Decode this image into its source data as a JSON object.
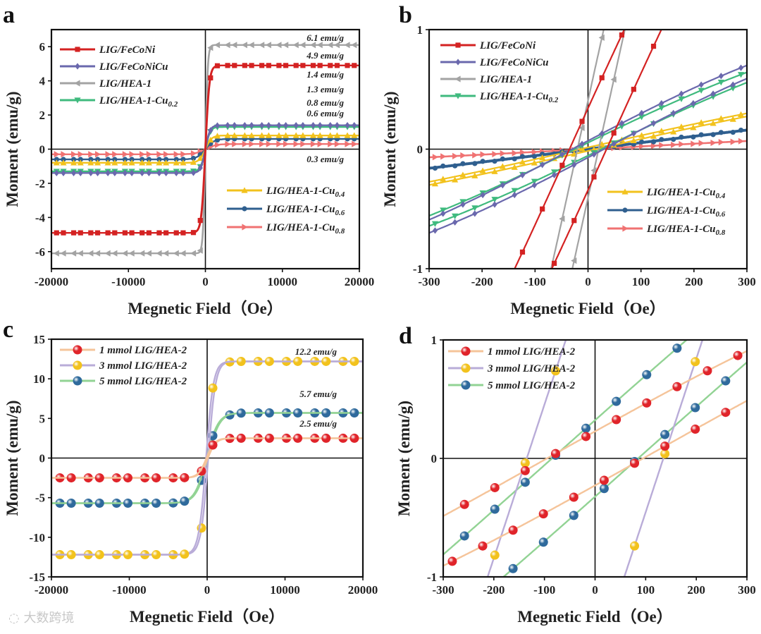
{
  "chart_data": [
    {
      "id": "a",
      "type": "line",
      "panel_label": "a",
      "xlabel": "Megnetic Field（Oe）",
      "ylabel": "Moment (emu/g)",
      "xlim": [
        -20000,
        20000
      ],
      "ylim": [
        -7,
        7
      ],
      "xticks": [
        -20000,
        -10000,
        0,
        10000,
        20000
      ],
      "yticks": [
        -6,
        -4,
        -2,
        0,
        2,
        4,
        6
      ],
      "series": [
        {
          "name": "LIG/FeCoNi",
          "sub": "",
          "color": "#d42222",
          "marker": "square",
          "ms": 4.9,
          "hc": 35,
          "w": 500
        },
        {
          "name": "LIG/FeCoNiCu",
          "sub": "",
          "color": "#6a68ad",
          "marker": "diamond",
          "ms": 1.4,
          "hc": 30,
          "w": 600
        },
        {
          "name": "LIG/HEA-1",
          "sub": "",
          "color": "#a3a3a3",
          "marker": "triangle-left",
          "ms": 6.1,
          "hc": 20,
          "w": 300
        },
        {
          "name": "LIG/HEA-1-Cu",
          "sub": "0.2",
          "color": "#3fba7e",
          "marker": "triangle-down",
          "ms": 1.3,
          "hc": 25,
          "w": 600
        },
        {
          "name": "LIG/HEA-1-Cu",
          "sub": "0.4",
          "color": "#f2c21d",
          "marker": "triangle-up",
          "ms": 0.8,
          "hc": 15,
          "w": 800
        },
        {
          "name": "LIG/HEA-1-Cu",
          "sub": "0.6",
          "color": "#2f5f8f",
          "marker": "circle",
          "ms": 0.6,
          "hc": 10,
          "w": 1100
        },
        {
          "name": "LIG/HEA-1-Cu",
          "sub": "0.8",
          "color": "#f07272",
          "marker": "triangle-right",
          "ms": 0.3,
          "hc": 5,
          "w": 1300
        }
      ],
      "annotations": [
        "6.1 emu/g",
        "4.9 emu/g",
        "1.4 emu/g",
        "1.3 emu/g",
        "0.8 emu/g",
        "0.6 emu/g",
        "0.3 emu/g"
      ]
    },
    {
      "id": "b",
      "type": "line",
      "panel_label": "b",
      "xlabel": "Megnetic Field（Oe）",
      "ylabel": "Moment (emu/g)",
      "xlim": [
        -300,
        300
      ],
      "ylim": [
        -1,
        1
      ],
      "xticks": [
        -300,
        -200,
        -100,
        0,
        100,
        200,
        300
      ],
      "yticks": [
        -1,
        0,
        1
      ],
      "series_ref": "a",
      "annotations": []
    },
    {
      "id": "c",
      "type": "line",
      "panel_label": "c",
      "xlabel": "Megnetic Field（Oe）",
      "ylabel": "Moment (emu/g)",
      "xlim": [
        -20000,
        20000
      ],
      "ylim": [
        -15,
        15
      ],
      "xticks": [
        -20000,
        -10000,
        0,
        10000,
        20000
      ],
      "yticks": [
        -15,
        -10,
        -5,
        0,
        5,
        10,
        15
      ],
      "series": [
        {
          "name": "1 mmol LIG/HEA-2",
          "sub": "",
          "color": "#f5c49a",
          "marker_color": "#e0242a",
          "marker": "sphere",
          "ms": 2.5,
          "hc": 95,
          "w": 1040
        },
        {
          "name": "3 mmol LIG/HEA-2",
          "sub": "",
          "color": "#b9acd8",
          "marker_color": "#f2c21d",
          "marker": "sphere",
          "ms": 12.2,
          "hc": 135,
          "w": 940
        },
        {
          "name": "5 mmol LIG/HEA-2",
          "sub": "",
          "color": "#92d394",
          "marker_color": "#2f6a9c",
          "marker": "sphere",
          "ms": 5.7,
          "hc": 85,
          "w": 1500
        }
      ],
      "annotations": [
        "12.2 emu/g",
        "5.7 emu/g",
        "2.5 emu/g"
      ]
    },
    {
      "id": "d",
      "type": "line",
      "panel_label": "d",
      "xlabel": "Megnetic Field（Oe）",
      "ylabel": "Moment (emu/g)",
      "xlim": [
        -300,
        300
      ],
      "ylim": [
        -1,
        1
      ],
      "xticks": [
        -300,
        -200,
        -100,
        0,
        100,
        200,
        300
      ],
      "yticks": [
        -1,
        0,
        1
      ],
      "series_ref": "c",
      "annotations": []
    }
  ],
  "watermark": "大数跨境"
}
